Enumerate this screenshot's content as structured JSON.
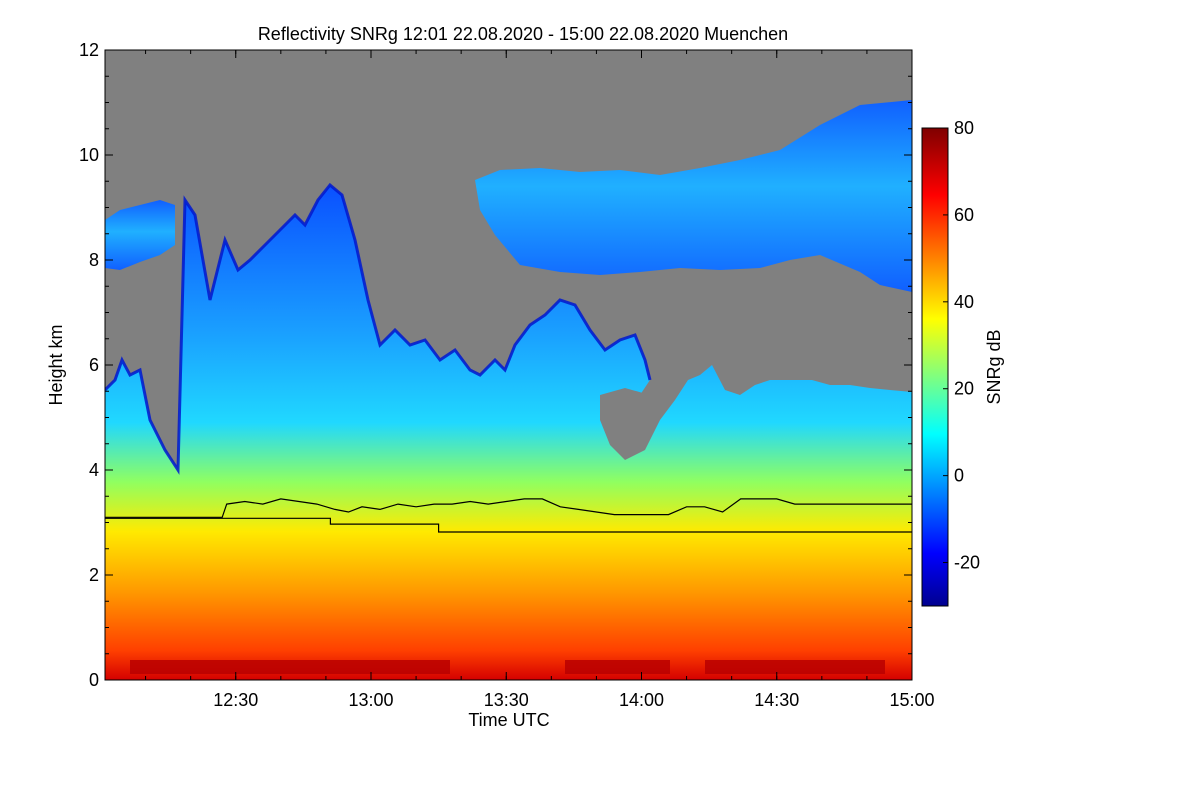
{
  "chart_data": {
    "type": "heatmap",
    "title": "Reflectivity SNRg   12:01 22.08.2020 - 15:00 22.08.2020 Muenchen",
    "xlabel": "Time UTC",
    "ylabel": "Height km",
    "xlim": [
      "12:01",
      "15:00"
    ],
    "ylim": [
      0,
      12
    ],
    "x_ticks": [
      "12:30",
      "13:00",
      "13:30",
      "14:00",
      "14:30",
      "15:00"
    ],
    "y_ticks": [
      "0",
      "2",
      "4",
      "6",
      "8",
      "10",
      "12"
    ],
    "colorbar": {
      "label": "SNRg dB",
      "range": [
        -30,
        80
      ],
      "ticks": [
        "-20",
        "0",
        "20",
        "40",
        "60",
        "80"
      ],
      "colormap": "jet",
      "no_signal_color": "#808080"
    },
    "overlay_lines": [
      {
        "color": "#000000",
        "x": [
          "12:01",
          "12:27",
          "12:28",
          "12:32",
          "12:36",
          "12:40",
          "12:44",
          "12:48",
          "12:52",
          "12:55",
          "12:58",
          "13:02",
          "13:06",
          "13:10",
          "13:14",
          "13:18",
          "13:22",
          "13:26",
          "13:30",
          "13:34",
          "13:38",
          "13:42",
          "13:46",
          "13:50",
          "13:54",
          "13:58",
          "14:06",
          "14:10",
          "14:14",
          "14:18",
          "14:22",
          "14:26",
          "14:30",
          "14:34",
          "15:00"
        ],
        "y": [
          3.1,
          3.1,
          3.35,
          3.4,
          3.35,
          3.45,
          3.4,
          3.35,
          3.25,
          3.2,
          3.3,
          3.25,
          3.35,
          3.3,
          3.35,
          3.35,
          3.4,
          3.35,
          3.4,
          3.45,
          3.45,
          3.3,
          3.25,
          3.2,
          3.15,
          3.15,
          3.15,
          3.3,
          3.3,
          3.2,
          3.45,
          3.45,
          3.45,
          3.35,
          3.35
        ]
      },
      {
        "color": "#000000",
        "x": [
          "12:01",
          "12:51",
          "12:51",
          "13:15",
          "13:15",
          "15:00"
        ],
        "y": [
          3.08,
          3.08,
          2.97,
          2.97,
          2.82,
          2.82
        ]
      }
    ]
  }
}
